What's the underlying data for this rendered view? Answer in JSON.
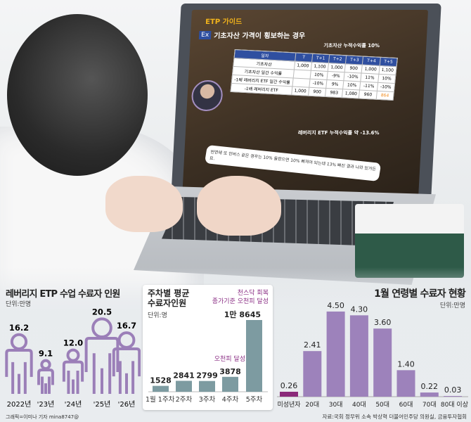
{
  "photo": {
    "screen": {
      "brand": "ETP 가이드",
      "ex_badge": "Ex",
      "headline": "기초자산 가격이 횡보하는 경우",
      "callout_top": "기초자산 누적수익률 10%",
      "callout_bottom": "레버리지 ETF 누적수익률 약 -13.6%",
      "table": {
        "header": [
          "일자",
          "T",
          "T+1",
          "T+2",
          "T+3",
          "T+4",
          "T+5"
        ],
        "rows": [
          [
            "기초자산",
            "1,000",
            "1,100",
            "1,000",
            "900",
            "1,000",
            "1,100"
          ],
          [
            "기초자산 일간 수익률",
            "",
            "10%",
            "-9%",
            "-10%",
            "11%",
            "10%"
          ],
          [
            "-1배 레버리지 ETF 일간 수익률",
            "",
            "-10%",
            "9%",
            "10%",
            "-11%",
            "-10%"
          ],
          [
            "-1배 레버리지 ETF",
            "1,000",
            "900",
            "983",
            "1,080",
            "960",
            "864"
          ]
        ]
      },
      "subtitle": "반면에 또 인버스 같은 경우는 10% 올랐으면 10% 빠져야 되는데 13% 빠진 결과 나와 있거든요."
    }
  },
  "chart_data": [
    {
      "type": "bar",
      "title": "레버리지 ETP 수업 수료자 인원",
      "unit": "단위:만명",
      "categories": [
        "2022년",
        "'23년",
        "'24년",
        "'25년",
        "'26년"
      ],
      "values": [
        16.2,
        9.1,
        12.0,
        20.5,
        16.7
      ],
      "value_labels": [
        "16.2",
        "9.1",
        "12.0",
        "20.5",
        "16.7"
      ],
      "mark": "person-icon",
      "color": "#9b7fb8",
      "credit": "그래픽=이미나 기자 mina8747@"
    },
    {
      "type": "bar",
      "title": [
        "주차별 평균",
        "수료자인원"
      ],
      "unit": "단위:명",
      "categories": [
        "1월 1주차",
        "2주차",
        "3주차",
        "4주차",
        "5주차"
      ],
      "values": [
        1528,
        2841,
        2799,
        3878,
        18645
      ],
      "value_labels": [
        "1528",
        "2841",
        "2799",
        "3878",
        "1만 8645"
      ],
      "annotations": [
        {
          "category": "4주차",
          "text": "오천피 달성"
        },
        {
          "category": "5주차",
          "text": [
            "천스닥 회복",
            "종가기준 오천피 달성"
          ]
        }
      ],
      "color": "#7d9ba1",
      "annotation_color": "#8b2f85"
    },
    {
      "type": "bar",
      "title": "1월 연령별 수료자 현황",
      "unit": "단위:만명",
      "categories": [
        "미성년자",
        "20대",
        "30대",
        "40대",
        "50대",
        "60대",
        "70대",
        "80대 이상"
      ],
      "values": [
        0.26,
        2.41,
        4.5,
        4.3,
        3.6,
        1.4,
        0.22,
        0.03
      ],
      "value_labels": [
        "0.26",
        "2.41",
        "4.50",
        "4.30",
        "3.60",
        "1.40",
        "0.22",
        "0.03"
      ],
      "color": "#9d82bb",
      "highlight_color": "#8b2a7a",
      "source": "자료:국회 정무위 소속 박상혁 더불어민주당 의원실, 금융투자협회"
    }
  ]
}
